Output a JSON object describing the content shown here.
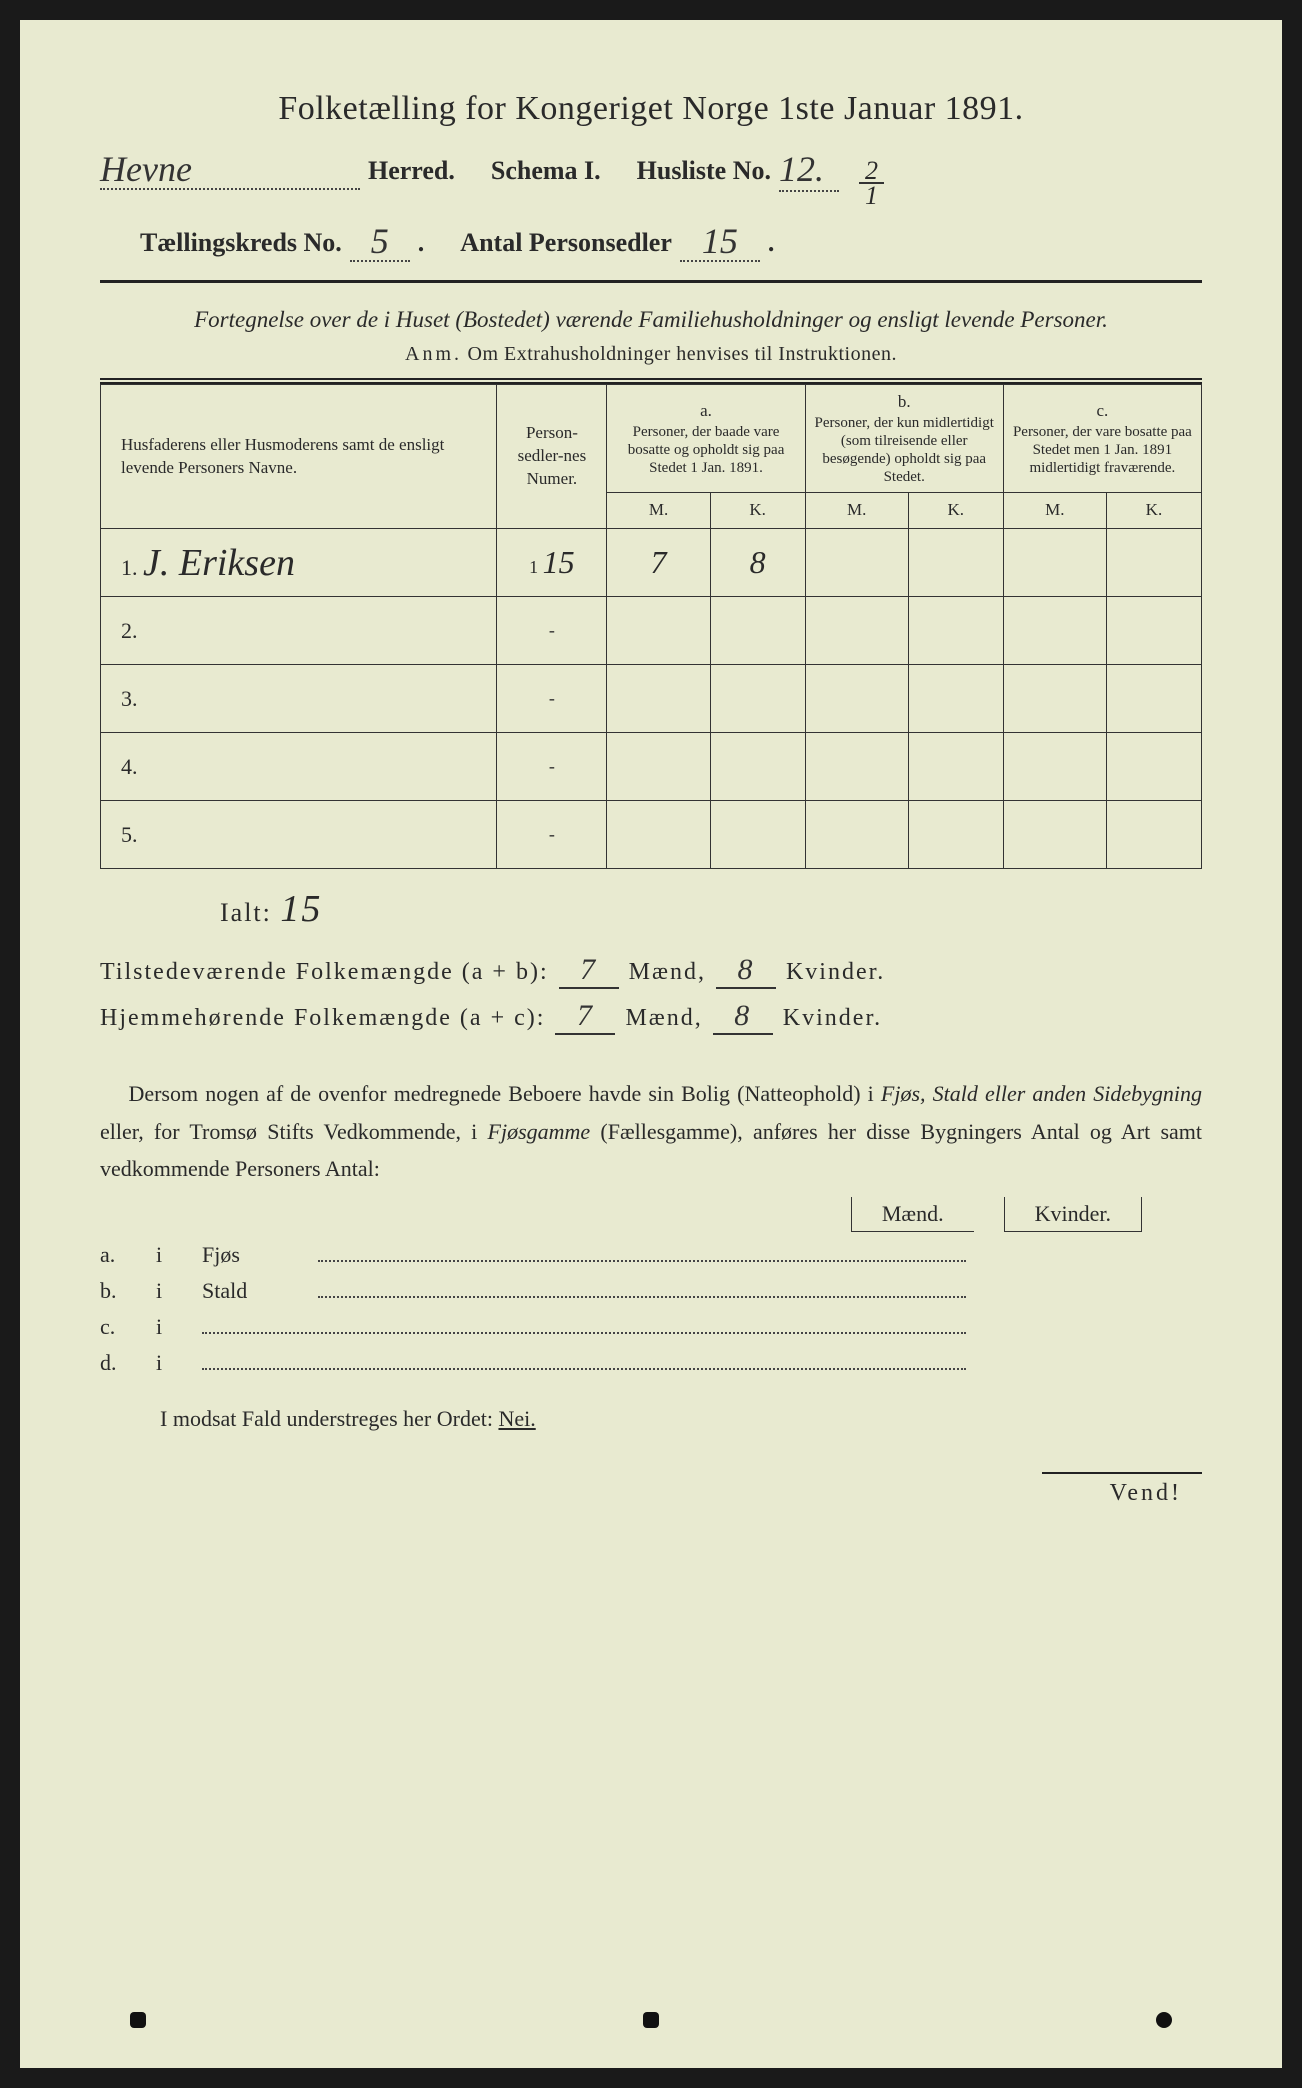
{
  "title": "Folketælling for Kongeriget Norge 1ste Januar 1891.",
  "header": {
    "herred_value": "Hevne",
    "herred_label": "Herred.",
    "schema_label": "Schema I.",
    "husliste_label": "Husliste No.",
    "husliste_value": "12.",
    "fraction_top": "2",
    "fraction_bot": "1",
    "taellingskreds_label": "Tællingskreds No.",
    "taellingskreds_value": "5",
    "antal_label": "Antal Personsedler",
    "antal_value": "15"
  },
  "subtitle": "Fortegnelse over de i Huset (Bostedet) værende Familiehusholdninger og ensligt levende Personer.",
  "anm_label": "Anm.",
  "anm_text": "Om Extrahusholdninger henvises til Instruktionen.",
  "table": {
    "col_name": "Husfaderens eller Husmoderens samt de ensligt levende Personers Navne.",
    "col_num": "Person-sedler-nes Numer.",
    "col_a_label": "a.",
    "col_a_text": "Personer, der baade vare bosatte og opholdt sig paa Stedet 1 Jan. 1891.",
    "col_b_label": "b.",
    "col_b_text": "Personer, der kun midlertidigt (som tilreisende eller besøgende) opholdt sig paa Stedet.",
    "col_c_label": "c.",
    "col_c_text": "Personer, der vare bosatte paa Stedet men 1 Jan. 1891 midlertidigt fraværende.",
    "m": "M.",
    "k": "K.",
    "rows": [
      {
        "n": "1.",
        "name": "J. Eriksen",
        "num_prefix": "1",
        "num": "15",
        "am": "7",
        "ak": "8",
        "bm": "",
        "bk": "",
        "cm": "",
        "ck": ""
      },
      {
        "n": "2.",
        "name": "",
        "num_prefix": "",
        "num": "-",
        "am": "",
        "ak": "",
        "bm": "",
        "bk": "",
        "cm": "",
        "ck": ""
      },
      {
        "n": "3.",
        "name": "",
        "num_prefix": "",
        "num": "-",
        "am": "",
        "ak": "",
        "bm": "",
        "bk": "",
        "cm": "",
        "ck": ""
      },
      {
        "n": "4.",
        "name": "",
        "num_prefix": "",
        "num": "-",
        "am": "",
        "ak": "",
        "bm": "",
        "bk": "",
        "cm": "",
        "ck": ""
      },
      {
        "n": "5.",
        "name": "",
        "num_prefix": "",
        "num": "-",
        "am": "",
        "ak": "",
        "bm": "",
        "bk": "",
        "cm": "",
        "ck": ""
      }
    ]
  },
  "ialt_label": "Ialt:",
  "ialt_value": "15",
  "totals": {
    "line1_label": "Tilstedeværende Folkemængde (a + b):",
    "line1_m": "7",
    "line1_k": "8",
    "line2_label": "Hjemmehørende Folkemængde (a + c):",
    "line2_m": "7",
    "line2_k": "8",
    "maend": "Mænd,",
    "kvinder": "Kvinder."
  },
  "para": "Dersom nogen af de ovenfor medregnede Beboere havde sin Bolig (Natteophold) i Fjøs, Stald eller anden Sidebygning eller, for Tromsø Stifts Vedkommende, i Fjøsgamme (Fællesgamme), anføres her disse Bygningers Antal og Art samt vedkommende Personers Antal:",
  "mk": {
    "m": "Mænd.",
    "k": "Kvinder."
  },
  "list": {
    "a": "a.",
    "b": "b.",
    "c": "c.",
    "d": "d.",
    "i": "i",
    "fjos": "Fjøs",
    "stald": "Stald"
  },
  "nei_line": "I modsat Fald understreges her Ordet:",
  "nei": "Nei.",
  "vend": "Vend!"
}
